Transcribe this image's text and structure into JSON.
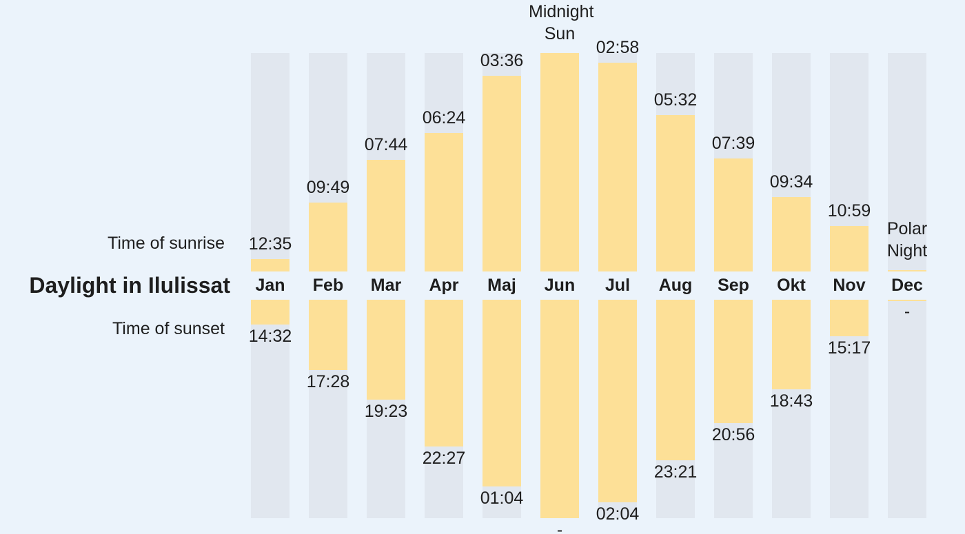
{
  "chart_data": {
    "type": "daylight",
    "title": "Daylight in Ilulissat",
    "categories": [
      "Jan",
      "Feb",
      "Mar",
      "Apr",
      "Maj",
      "Jun",
      "Jul",
      "Aug",
      "Sep",
      "Okt",
      "Nov",
      "Dec"
    ],
    "series": [
      {
        "name": "Time of sunrise",
        "color": "#fde097",
        "values": [
          12.5833,
          9.8167,
          7.7333,
          6.4,
          3.6,
          null,
          2.9667,
          5.5333,
          7.65,
          9.5667,
          10.9833,
          null
        ],
        "value_labels": [
          "12:35",
          "09:49",
          "07:44",
          "06:24",
          "03:36",
          "Midnight Sun",
          "02:58",
          "05:32",
          "07:39",
          "09:34",
          "10:59",
          "Polar Night"
        ]
      },
      {
        "name": "Time of sunset",
        "color": "#fde097",
        "values": [
          14.5333,
          17.4667,
          19.3833,
          22.45,
          1.0667,
          null,
          2.0667,
          23.35,
          20.9333,
          18.7167,
          15.2833,
          null
        ],
        "value_labels": [
          "14:32",
          "17:28",
          "19:23",
          "22:27",
          "01:04",
          "-",
          "02:04",
          "23:21",
          "20:56",
          "18:43",
          "15:17",
          "-"
        ]
      }
    ]
  }
}
